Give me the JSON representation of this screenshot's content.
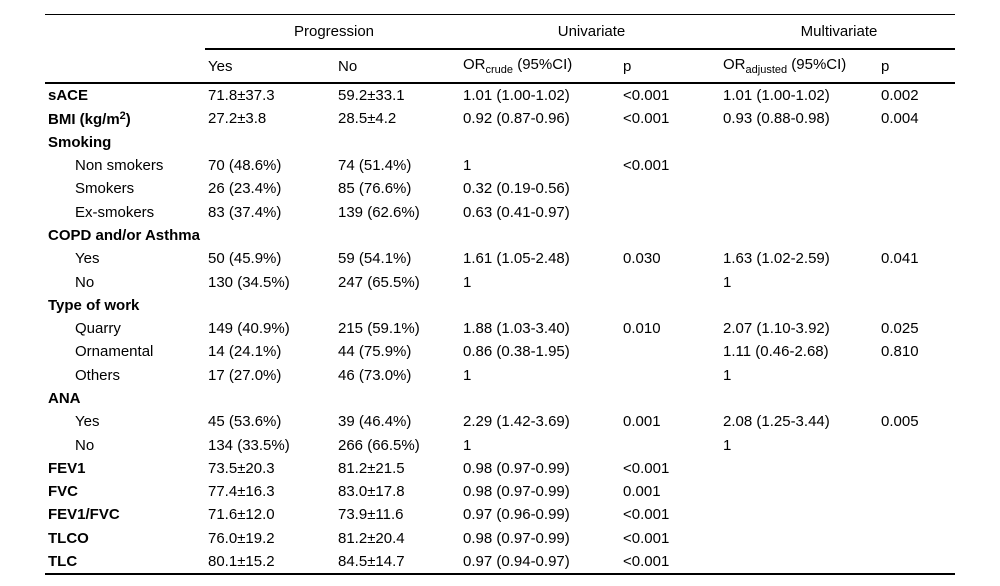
{
  "table": {
    "col_groups": [
      {
        "label": "Progression"
      },
      {
        "label": "Univariate"
      },
      {
        "label": "Multivariate"
      }
    ],
    "columns": {
      "yes": "Yes",
      "no": "No",
      "or_crude_pre": "OR",
      "or_crude_sub": "crude",
      "or_crude_post": " (95%CI)",
      "p_univariate": "p",
      "or_adjusted_pre": "OR",
      "or_adjusted_sub": "adjusted",
      "or_adjusted_post": " (95%CI)",
      "p_multivariate": "p"
    },
    "column_keys": [
      "yes",
      "no",
      "or-crude",
      "p-univariate",
      "or-adjusted",
      "p-multivariate"
    ],
    "rows": [
      {
        "label": "sACE",
        "bold": true,
        "cells": [
          "71.8±37.3",
          "59.2±33.1",
          "1.01 (1.00-1.02)",
          "<0.001",
          "1.01 (1.00-1.02)",
          "0.002"
        ]
      },
      {
        "label": "BMI (kg/m",
        "label_sup": "2",
        "label_end": ")",
        "bold": true,
        "cells": [
          "27.2±3.8",
          "28.5±4.2",
          "0.92 (0.87-0.96)",
          "<0.001",
          "0.93 (0.88-0.98)",
          "0.004"
        ]
      },
      {
        "label": "Smoking",
        "bold": true,
        "cells": [
          "",
          "",
          "",
          "",
          "",
          ""
        ]
      },
      {
        "label": "Non smokers",
        "indent": true,
        "cells": [
          "70 (48.6%)",
          "74 (51.4%)",
          "1",
          "<0.001",
          "",
          ""
        ]
      },
      {
        "label": "Smokers",
        "indent": true,
        "cells": [
          "26 (23.4%)",
          "85 (76.6%)",
          "0.32 (0.19-0.56)",
          "",
          "",
          ""
        ]
      },
      {
        "label": "Ex-smokers",
        "indent": true,
        "cells": [
          "83 (37.4%)",
          "139 (62.6%)",
          "0.63 (0.41-0.97)",
          "",
          "",
          ""
        ]
      },
      {
        "label": "COPD and/or Asthma",
        "bold": true,
        "cells": [
          "",
          "",
          "",
          "",
          "",
          ""
        ]
      },
      {
        "label": "Yes",
        "indent": true,
        "cells": [
          "50 (45.9%)",
          "59 (54.1%)",
          "1.61 (1.05-2.48)",
          "0.030",
          "1.63 (1.02-2.59)",
          "0.041"
        ]
      },
      {
        "label": "No",
        "indent": true,
        "cells": [
          "130 (34.5%)",
          "247 (65.5%)",
          "1",
          "",
          "1",
          ""
        ]
      },
      {
        "label": "Type of work",
        "bold": true,
        "cells": [
          "",
          "",
          "",
          "",
          "",
          ""
        ]
      },
      {
        "label": "Quarry",
        "indent": true,
        "cells": [
          "149 (40.9%)",
          "215 (59.1%)",
          "1.88 (1.03-3.40)",
          "0.010",
          "2.07 (1.10-3.92)",
          "0.025"
        ]
      },
      {
        "label": "Ornamental",
        "indent": true,
        "cells": [
          "14 (24.1%)",
          "44 (75.9%)",
          "0.86 (0.38-1.95)",
          "",
          "1.11 (0.46-2.68)",
          "0.810"
        ]
      },
      {
        "label": "Others",
        "indent": true,
        "cells": [
          "17 (27.0%)",
          "46 (73.0%)",
          "1",
          "",
          "1",
          ""
        ]
      },
      {
        "label": "ANA",
        "bold": true,
        "cells": [
          "",
          "",
          "",
          "",
          "",
          ""
        ]
      },
      {
        "label": "Yes",
        "indent": true,
        "cells": [
          "45 (53.6%)",
          "39 (46.4%)",
          "2.29 (1.42-3.69)",
          "0.001",
          "2.08 (1.25-3.44)",
          "0.005"
        ]
      },
      {
        "label": "No",
        "indent": true,
        "cells": [
          "134 (33.5%)",
          "266 (66.5%)",
          "1",
          "",
          "1",
          ""
        ]
      },
      {
        "label": "FEV1",
        "bold": true,
        "cells": [
          "73.5±20.3",
          "81.2±21.5",
          "0.98 (0.97-0.99)",
          "<0.001",
          "",
          ""
        ]
      },
      {
        "label": "FVC",
        "bold": true,
        "cells": [
          "77.4±16.3",
          "83.0±17.8",
          "0.98 (0.97-0.99)",
          "0.001",
          "",
          ""
        ]
      },
      {
        "label": "FEV1/FVC",
        "bold": true,
        "cells": [
          "71.6±12.0",
          "73.9±11.6",
          "0.97 (0.96-0.99)",
          "<0.001",
          "",
          ""
        ]
      },
      {
        "label": "TLCO",
        "bold": true,
        "cells": [
          "76.0±19.2",
          "81.2±20.4",
          "0.98 (0.97-0.99)",
          "<0.001",
          "",
          ""
        ]
      },
      {
        "label": "TLC",
        "bold": true,
        "cells": [
          "80.1±15.2",
          "84.5±14.7",
          "0.97 (0.94-0.97)",
          "<0.001",
          "",
          ""
        ]
      }
    ]
  }
}
